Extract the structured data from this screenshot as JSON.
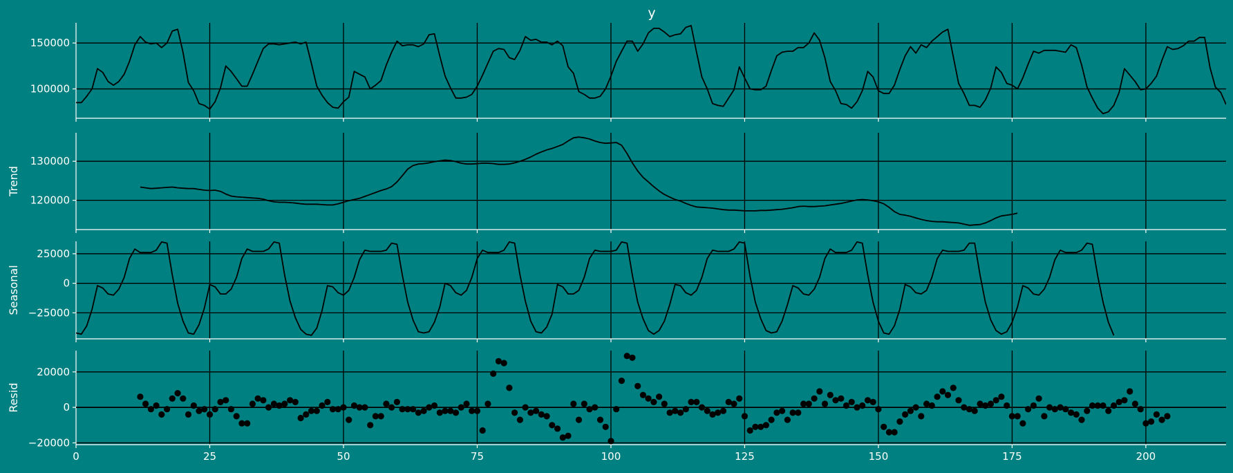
{
  "colors": {
    "background": "#008080",
    "line": "#000000",
    "grid": "#000000",
    "text": "#ffffff"
  },
  "chart_data": [
    {
      "type": "line",
      "title": "y",
      "xlabel": "",
      "ylabel": "",
      "xlim": [
        0,
        215
      ],
      "ylim": [
        68000,
        172000
      ],
      "xticks": [
        0,
        25,
        50,
        75,
        100,
        125,
        150,
        175,
        200
      ],
      "yticks": [
        100000,
        150000
      ],
      "ytick_labels": [
        "100000",
        "150000"
      ],
      "grid": true,
      "series": [
        {
          "x_start": 0,
          "values": [
            85000,
            85000,
            92000,
            100000,
            122000,
            118000,
            108000,
            104000,
            108000,
            116000,
            130000,
            148000,
            157000,
            151000,
            149000,
            150000,
            145000,
            150000,
            163000,
            165000,
            140000,
            107000,
            98000,
            84000,
            82000,
            78000,
            86000,
            101000,
            125000,
            119000,
            111000,
            103000,
            103000,
            116000,
            130000,
            144000,
            149000,
            149000,
            148000,
            149000,
            150000,
            151000,
            149000,
            151000,
            128000,
            103000,
            93000,
            85000,
            80000,
            79000,
            86000,
            91000,
            119000,
            116000,
            113000,
            100000,
            104000,
            109000,
            126000,
            140000,
            152000,
            147000,
            148000,
            148000,
            146000,
            149000,
            159000,
            160000,
            136000,
            114000,
            101000,
            90000,
            90000,
            91000,
            94000,
            103000,
            115000,
            128000,
            141000,
            144000,
            143000,
            134000,
            132000,
            142000,
            157000,
            153000,
            154000,
            151000,
            151000,
            148000,
            152000,
            147000,
            124000,
            117000,
            97000,
            94000,
            90000,
            90000,
            92000,
            100000,
            114000,
            130000,
            141000,
            152000,
            152000,
            141000,
            149000,
            161000,
            166000,
            166000,
            162000,
            157000,
            159000,
            160000,
            167000,
            169000,
            140000,
            113000,
            100000,
            84000,
            82000,
            81000,
            90000,
            99000,
            124000,
            112000,
            100000,
            99000,
            99000,
            103000,
            120000,
            136000,
            140000,
            141000,
            141000,
            145000,
            145000,
            150000,
            161000,
            153000,
            134000,
            108000,
            98000,
            84000,
            83000,
            79000,
            86000,
            98000,
            119000,
            113000,
            98000,
            95000,
            95000,
            104000,
            121000,
            136000,
            146000,
            139000,
            148000,
            145000,
            152000,
            157000,
            162000,
            165000,
            135000,
            106000,
            95000,
            82000,
            82000,
            80000,
            88000,
            101000,
            124000,
            118000,
            106000,
            104000,
            100000,
            112000,
            127000,
            141000,
            139000,
            142000,
            142000,
            142000,
            141000,
            140000,
            148000,
            145000,
            126000,
            102000,
            90000,
            79000,
            73000,
            75000,
            82000,
            96000,
            122000,
            115000,
            108000,
            99000,
            100000,
            106000,
            114000,
            131000,
            146000,
            143000,
            144000,
            147000,
            152000,
            152000,
            156000,
            156000,
            123000,
            102000,
            96000,
            83000
          ]
        }
      ]
    },
    {
      "type": "line",
      "title": "",
      "xlabel": "",
      "ylabel": "Trend",
      "xlim": [
        0,
        215
      ],
      "ylim": [
        112500,
        137300
      ],
      "xticks": [
        0,
        25,
        50,
        75,
        100,
        125,
        150,
        175,
        200
      ],
      "yticks": [
        120000,
        130000
      ],
      "ytick_labels": [
        "120000",
        "130000"
      ],
      "grid": true,
      "series": [
        {
          "x_start": 12,
          "values": [
            123400,
            123200,
            123000,
            123100,
            123200,
            123300,
            123400,
            123200,
            123100,
            123000,
            123000,
            122800,
            122600,
            122500,
            122600,
            122300,
            121600,
            121100,
            120900,
            120800,
            120700,
            120600,
            120500,
            120300,
            119900,
            119600,
            119500,
            119500,
            119400,
            119300,
            119100,
            119000,
            119000,
            119000,
            118900,
            118800,
            118800,
            119100,
            119500,
            119900,
            120200,
            120500,
            121000,
            121500,
            122000,
            122500,
            122900,
            123500,
            124700,
            126300,
            128000,
            128900,
            129300,
            129400,
            129600,
            129900,
            130100,
            130300,
            130200,
            129900,
            129500,
            129300,
            129300,
            129400,
            129500,
            129500,
            129400,
            129200,
            129200,
            129300,
            129600,
            130000,
            130500,
            131100,
            131800,
            132400,
            132900,
            133300,
            133800,
            134300,
            135200,
            136000,
            136200,
            136000,
            135700,
            135200,
            134800,
            134600,
            134700,
            134800,
            134100,
            132000,
            129600,
            127500,
            125900,
            124700,
            123500,
            122400,
            121500,
            120800,
            120200,
            119800,
            119200,
            118700,
            118300,
            118200,
            118100,
            118000,
            117800,
            117600,
            117500,
            117500,
            117400,
            117300,
            117300,
            117300,
            117400,
            117400,
            117500,
            117600,
            117700,
            117900,
            118100,
            118400,
            118500,
            118400,
            118400,
            118500,
            118600,
            118800,
            119000,
            119200,
            119500,
            119800,
            120100,
            120200,
            120100,
            119900,
            119600,
            119100,
            118200,
            117100,
            116400,
            116200,
            115900,
            115500,
            115100,
            114800,
            114600,
            114500,
            114500,
            114400,
            114300,
            114200,
            113900,
            113600,
            113700,
            113800,
            114200,
            114800,
            115500,
            116000,
            116200,
            116400,
            116700
          ]
        }
      ]
    },
    {
      "type": "line",
      "title": "",
      "xlabel": "",
      "ylabel": "Seasonal",
      "xlim": [
        0,
        215
      ],
      "ylim": [
        -47000,
        35500
      ],
      "xticks": [
        0,
        25,
        50,
        75,
        100,
        125,
        150,
        175,
        200
      ],
      "yticks": [
        -25000,
        0,
        25000
      ],
      "ytick_labels": [
        "−25000",
        "0",
        "25000"
      ],
      "grid": true,
      "series": [
        {
          "x_start": 0,
          "values": [
            -42000,
            -43000,
            -36000,
            -22000,
            -2000,
            -4000,
            -9000,
            -10000,
            -5000,
            5000,
            21000,
            29000,
            26000,
            26000,
            26000,
            28000,
            35000,
            34000,
            7000,
            -17000,
            -32000,
            -42000,
            -43000,
            -35000,
            -21000,
            -1000,
            -3000,
            -9000,
            -9000,
            -5000,
            5000,
            21000,
            29000,
            27000,
            27000,
            27000,
            29000,
            35000,
            34000,
            7000,
            -15000,
            -29000,
            -39000,
            -43000,
            -44000,
            -38000,
            -23000,
            -2000,
            -3000,
            -8000,
            -10000,
            -6000,
            5000,
            20000,
            28000,
            27000,
            27000,
            27000,
            28000,
            34000,
            33000,
            7000,
            -16000,
            -31000,
            -41000,
            -42000,
            -41000,
            -33000,
            -20000,
            0,
            -2000,
            -8000,
            -10000,
            -6000,
            5000,
            21000,
            28000,
            26000,
            26000,
            26000,
            28000,
            35000,
            34000,
            7000,
            -15000,
            -32000,
            -41000,
            -42000,
            -37000,
            -26000,
            -1000,
            -3000,
            -9000,
            -9000,
            -6000,
            5000,
            21000,
            28000,
            27000,
            27000,
            27000,
            28000,
            35000,
            34000,
            7000,
            -16000,
            -30000,
            -40000,
            -43000,
            -40000,
            -32000,
            -18000,
            -1000,
            -2000,
            -8000,
            -10000,
            -6000,
            5000,
            21000,
            28000,
            27000,
            27000,
            27000,
            29000,
            35000,
            34000,
            6000,
            -16000,
            -30000,
            -40000,
            -42000,
            -41000,
            -32000,
            -18000,
            -2000,
            -4000,
            -9000,
            -10000,
            -5000,
            5000,
            21000,
            29000,
            26000,
            26000,
            26000,
            28000,
            35000,
            34000,
            7000,
            -16000,
            -32000,
            -42000,
            -43000,
            -36000,
            -22000,
            -1000,
            -3000,
            -8000,
            -9000,
            -6000,
            5000,
            21000,
            28000,
            27000,
            27000,
            27000,
            28000,
            34000,
            34000,
            7000,
            -16000,
            -31000,
            -40000,
            -43000,
            -41000,
            -33000,
            -20000,
            -2000,
            -4000,
            -9000,
            -10000,
            -5000,
            5000,
            20000,
            28000,
            26000,
            26000,
            26000,
            28000,
            34000,
            33000,
            6000,
            -16000,
            -33000,
            -44000
          ]
        }
      ]
    },
    {
      "type": "scatter",
      "title": "",
      "xlabel": "",
      "ylabel": "Resid",
      "xlim": [
        0,
        215
      ],
      "ylim": [
        -21000,
        32000
      ],
      "xticks": [
        0,
        25,
        50,
        75,
        100,
        125,
        150,
        175,
        200
      ],
      "xtick_labels": [
        "0",
        "25",
        "50",
        "75",
        "100",
        "125",
        "150",
        "175",
        "200"
      ],
      "yticks": [
        -20000,
        0,
        20000
      ],
      "ytick_labels": [
        "−20000",
        "0",
        "20000"
      ],
      "grid": true,
      "baseline": 0,
      "series": [
        {
          "x_start": 12,
          "values": [
            6000,
            2000,
            -1000,
            1000,
            -4000,
            -1000,
            5000,
            8000,
            5000,
            -4000,
            1000,
            -2000,
            -1000,
            -4000,
            -1000,
            3000,
            4000,
            -1000,
            -5000,
            -9000,
            -9000,
            2000,
            5000,
            4000,
            0,
            2000,
            1000,
            2000,
            4000,
            3000,
            -6000,
            -4000,
            -2000,
            -2000,
            1000,
            3000,
            -1000,
            -1000,
            0,
            -7000,
            1000,
            0,
            0,
            -10000,
            -5000,
            -5000,
            2000,
            0,
            3000,
            -1000,
            -1000,
            -1000,
            -3000,
            -2000,
            0,
            1000,
            -3000,
            -2000,
            -2000,
            -3000,
            0,
            2000,
            -2000,
            -2000,
            -13000,
            2000,
            19000,
            26000,
            25000,
            11000,
            -3000,
            -7000,
            0,
            -3000,
            -2000,
            -4000,
            -5000,
            -10000,
            -12000,
            -17000,
            -16000,
            2000,
            -7000,
            2000,
            -1000,
            0,
            -7000,
            -11000,
            -19000,
            -1000,
            15000,
            29000,
            28000,
            12000,
            7000,
            5000,
            3000,
            6000,
            2000,
            -3000,
            -2000,
            -3000,
            -1000,
            3000,
            3000,
            0,
            -2000,
            -4000,
            -3000,
            -2000,
            3000,
            2000,
            5000,
            -5000,
            -13000,
            -11000,
            -11000,
            -10000,
            -7000,
            -3000,
            -2000,
            -7000,
            -3000,
            -3000,
            2000,
            2000,
            5000,
            9000,
            2000,
            7000,
            4000,
            5000,
            1000,
            3000,
            0,
            1000,
            4000,
            3000,
            -1000,
            -11000,
            -14000,
            -14000,
            -8000,
            -4000,
            -2000,
            0,
            -5000,
            2000,
            1000,
            6000,
            9000,
            7000,
            11000,
            4000,
            0,
            -1000,
            -2000,
            2000,
            1000,
            2000,
            4000,
            6000,
            1000,
            -5000,
            -5000,
            -9000,
            -1000,
            1000,
            5000,
            -5000,
            0,
            -1000,
            0,
            -1000,
            -3000,
            -4000,
            -7000,
            -2000,
            1000,
            1000,
            1000,
            -2000,
            1000,
            3000,
            4000,
            9000,
            2000,
            -1000,
            -9000,
            -8000,
            -4000,
            -7000,
            -5000
          ]
        }
      ]
    }
  ]
}
